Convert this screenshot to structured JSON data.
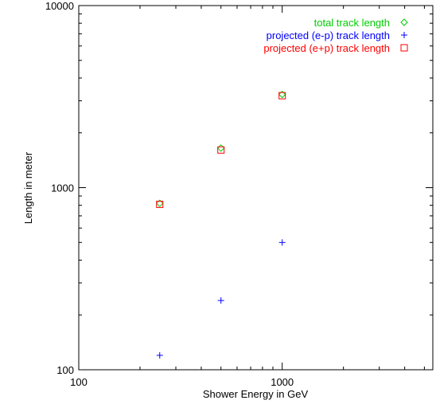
{
  "chart_data": {
    "type": "scatter",
    "xlabel": "Shower Energy in GeV",
    "ylabel": "Length in meter",
    "xscale": "log",
    "yscale": "log",
    "xlim": [
      100,
      5500
    ],
    "ylim": [
      100,
      10000
    ],
    "x_ticks": [
      100,
      1000
    ],
    "x_tick_labels": [
      "100",
      "1000"
    ],
    "y_ticks": [
      100,
      1000,
      10000
    ],
    "y_tick_labels": [
      "100",
      "1000",
      "10000"
    ],
    "grid": false,
    "legend_position": "top-right",
    "series": [
      {
        "name": "total track length",
        "marker": "diamond",
        "color": "#00cc00",
        "x": [
          250,
          500,
          1000
        ],
        "y": [
          820,
          1650,
          3250
        ]
      },
      {
        "name": "projected (e-p) track length",
        "marker": "plus",
        "color": "#0000ff",
        "x": [
          250,
          500,
          1000
        ],
        "y": [
          120,
          240,
          500
        ]
      },
      {
        "name": "projected (e+p) track length",
        "marker": "square",
        "color": "#ff0000",
        "x": [
          250,
          500,
          1000
        ],
        "y": [
          810,
          1610,
          3200
        ]
      }
    ]
  }
}
